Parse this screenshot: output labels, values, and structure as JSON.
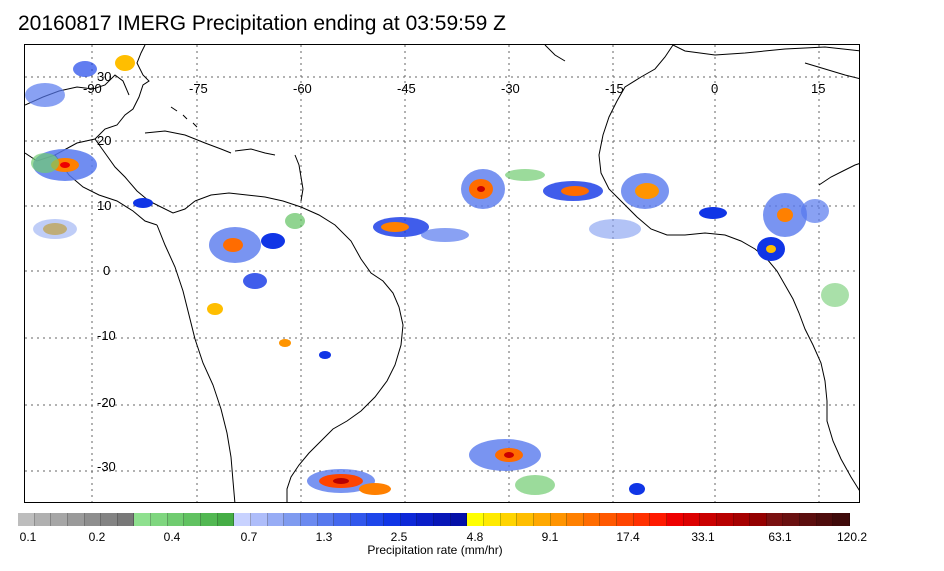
{
  "title": "20160817 IMERG Precipitation ending at 03:59:59 Z",
  "map": {
    "lon_labels": [
      "-90",
      "-75",
      "-60",
      "-45",
      "-30",
      "-15",
      "0",
      "15"
    ],
    "lat_labels": [
      "30",
      "20",
      "10",
      "0",
      "-10",
      "-20",
      "-30"
    ],
    "colors": {
      "land_outline": "#000000",
      "grid": "#555555"
    }
  },
  "colorbar": {
    "labels": [
      "0.1",
      "0.2",
      "0.4",
      "0.7",
      "1.3",
      "2.5",
      "4.8",
      "9.1",
      "17.4",
      "33.1",
      "63.1",
      "120.2"
    ],
    "unit_label": "Precipitation rate (mm/hr)",
    "colors": [
      "#bdbdbd",
      "#b0b0b0",
      "#a6a6a6",
      "#9a9a9a",
      "#8e8e8e",
      "#838383",
      "#787878",
      "#8fe08f",
      "#7fd67f",
      "#70cc70",
      "#61c261",
      "#52b852",
      "#45ad45",
      "#c8d2ff",
      "#aebdfa",
      "#97acf5",
      "#7f9bf0",
      "#6b8af0",
      "#5779ee",
      "#4468ee",
      "#3157ec",
      "#1e46ea",
      "#1035e6",
      "#0d28d8",
      "#0a1ec8",
      "#0716b8",
      "#0410a8",
      "#ffff00",
      "#ffea00",
      "#ffd400",
      "#ffbe00",
      "#ffa800",
      "#ff9400",
      "#ff8000",
      "#ff6c00",
      "#ff5800",
      "#ff4400",
      "#ff3000",
      "#ff1a00",
      "#ee0000",
      "#dc0000",
      "#ca0000",
      "#b80000",
      "#a60000",
      "#940000",
      "#7a1010",
      "#6a1010",
      "#5c0e0e",
      "#4e0c0c",
      "#400a0a"
    ]
  }
}
